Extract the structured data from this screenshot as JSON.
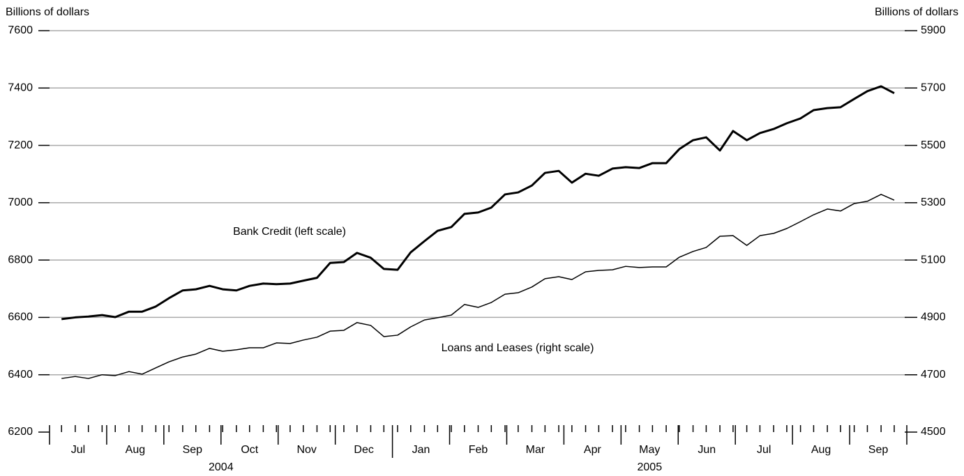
{
  "chart_data": {
    "type": "line",
    "y_label": "Billions of dollars",
    "y2_label": "Billions of dollars",
    "annotations": [
      "Bank Credit (left scale)",
      "Loans and Leases (right scale)"
    ],
    "xlim": [
      0,
      15
    ],
    "xticks": [
      {
        "value": 0.5,
        "label": "Jul"
      },
      {
        "value": 1.5,
        "label": "Aug"
      },
      {
        "value": 2.5,
        "label": "Sep"
      },
      {
        "value": 3.5,
        "label": "Oct"
      },
      {
        "value": 4.5,
        "label": "Nov"
      },
      {
        "value": 5.5,
        "label": "Dec"
      },
      {
        "value": 6.5,
        "label": "Jan"
      },
      {
        "value": 7.5,
        "label": "Feb"
      },
      {
        "value": 8.5,
        "label": "Mar"
      },
      {
        "value": 9.5,
        "label": "Apr"
      },
      {
        "value": 10.5,
        "label": "May"
      },
      {
        "value": 11.5,
        "label": "Jun"
      },
      {
        "value": 12.5,
        "label": "Jul"
      },
      {
        "value": 13.5,
        "label": "Aug"
      },
      {
        "value": 14.5,
        "label": "Sep"
      }
    ],
    "year_labels": [
      {
        "value": 3,
        "label": "2004"
      },
      {
        "value": 10.5,
        "label": "2005"
      }
    ],
    "x": [
      0.21,
      0.45,
      0.68,
      0.92,
      1.15,
      1.39,
      1.62,
      1.86,
      2.09,
      2.33,
      2.56,
      2.8,
      3.03,
      3.27,
      3.5,
      3.74,
      3.97,
      4.21,
      4.44,
      4.68,
      4.91,
      5.15,
      5.38,
      5.62,
      5.85,
      6.09,
      6.32,
      6.56,
      6.79,
      7.03,
      7.26,
      7.5,
      7.73,
      7.97,
      8.2,
      8.44,
      8.67,
      8.91,
      9.14,
      9.38,
      9.61,
      9.85,
      10.08,
      10.32,
      10.55,
      10.79,
      11.02,
      11.26,
      11.49,
      11.73,
      11.96,
      12.2,
      12.43,
      12.67,
      12.9,
      13.14,
      13.37,
      13.61,
      13.84,
      14.08,
      14.31,
      14.55,
      14.78
    ],
    "ylim": [
      6200,
      7600
    ],
    "yticks": [
      6200,
      6400,
      6600,
      6800,
      7000,
      7200,
      7400,
      7600
    ],
    "y2lim": [
      4500,
      5900
    ],
    "y2ticks": [
      4500,
      4700,
      4900,
      5100,
      5300,
      5500,
      5700,
      5900
    ],
    "grid": true,
    "series": [
      {
        "name": "Bank Credit",
        "color": "#000000",
        "width": 3,
        "values": [
          6594,
          6600,
          6603,
          6608,
          6601,
          6620,
          6620,
          6638,
          6667,
          6694,
          6698,
          6710,
          6698,
          6694,
          6710,
          6718,
          6716,
          6718,
          6728,
          6738,
          6790,
          6793,
          6825,
          6808,
          6769,
          6766,
          6827,
          6866,
          6902,
          6915,
          6961,
          6966,
          6983,
          7029,
          7036,
          7060,
          7104,
          7111,
          7070,
          7101,
          7094,
          7119,
          7124,
          7121,
          7138,
          7138,
          7187,
          7218,
          7228,
          7182,
          7250,
          7218,
          7243,
          7257,
          7277,
          7294,
          7323,
          7330,
          7333,
          7362,
          7389,
          7406,
          7382
        ]
      },
      {
        "name": "Loans and Leases",
        "color": "#000000",
        "width": 1.5,
        "axis": "y2",
        "values": [
          4687,
          4694,
          4687,
          4700,
          4697,
          4711,
          4702,
          4724,
          4745,
          4762,
          4772,
          4792,
          4782,
          4787,
          4794,
          4794,
          4811,
          4809,
          4821,
          4831,
          4852,
          4855,
          4882,
          4872,
          4833,
          4838,
          4867,
          4891,
          4899,
          4908,
          4945,
          4935,
          4952,
          4981,
          4986,
          5006,
          5035,
          5042,
          5032,
          5059,
          5064,
          5066,
          5078,
          5074,
          5076,
          5076,
          5110,
          5130,
          5144,
          5183,
          5185,
          5151,
          5185,
          5193,
          5210,
          5234,
          5258,
          5278,
          5271,
          5297,
          5305,
          5329,
          5309
        ]
      }
    ]
  }
}
